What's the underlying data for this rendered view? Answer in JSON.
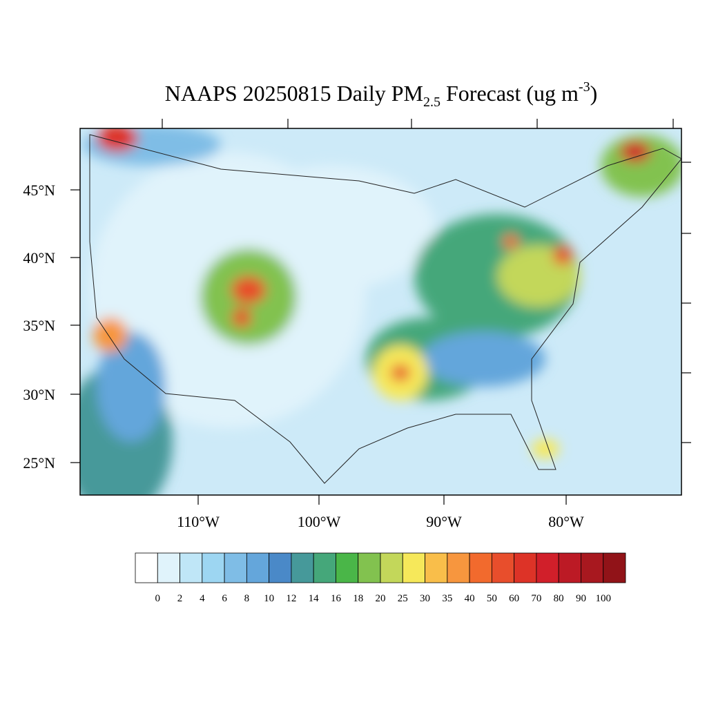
{
  "title": {
    "main": "NAAPS 20250815 Daily PM",
    "sub": "2.5",
    "mid": " Forecast (ug m",
    "sup": "-3",
    "end": ")"
  },
  "latitude_labels": [
    "45°N",
    "40°N",
    "35°N",
    "30°N",
    "25°N"
  ],
  "longitude_labels": [
    "110°W",
    "100°W",
    "90°W",
    "80°W"
  ],
  "colorbar": {
    "levels": [
      0,
      2,
      4,
      6,
      8,
      10,
      12,
      14,
      16,
      18,
      20,
      25,
      30,
      35,
      40,
      50,
      60,
      70,
      80,
      90,
      100
    ],
    "colors": [
      "#ffffff",
      "#e0f3fb",
      "#bfe6f7",
      "#9dd6f2",
      "#7fbde6",
      "#64a6db",
      "#4a89c8",
      "#46999a",
      "#45a77a",
      "#4ab648",
      "#82c24f",
      "#c3d75a",
      "#f6e85a",
      "#f9be4a",
      "#f7963e",
      "#f26a2d",
      "#e84e2c",
      "#dd3327",
      "#d11f2a",
      "#bc1a25",
      "#a8181f",
      "#911318"
    ]
  }
}
